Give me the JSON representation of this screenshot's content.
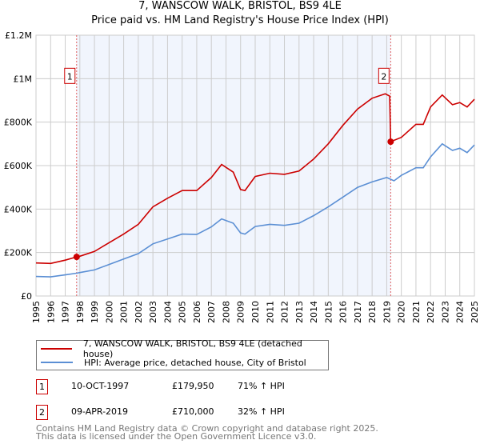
{
  "chart_data": {
    "type": "line",
    "title": "7, WANSCOW WALK, BRISTOL, BS9 4LE",
    "subtitle": "Price paid vs. HM Land Registry's House Price Index (HPI)",
    "xlim": [
      1995,
      2025
    ],
    "ylim": [
      0,
      1200000
    ],
    "yticks": [
      0,
      200000,
      400000,
      600000,
      800000,
      1000000,
      1200000
    ],
    "ytick_labels": [
      "£0",
      "£200K",
      "£400K",
      "£600K",
      "£800K",
      "£1M",
      "£1.2M"
    ],
    "xticks": [
      "1995",
      "1996",
      "1997",
      "1998",
      "1999",
      "2000",
      "2001",
      "2002",
      "2003",
      "2004",
      "2005",
      "2006",
      "2007",
      "2008",
      "2009",
      "2010",
      "2011",
      "2012",
      "2013",
      "2014",
      "2015",
      "2016",
      "2017",
      "2018",
      "2019",
      "2020",
      "2021",
      "2022",
      "2023",
      "2024",
      "2025"
    ],
    "grid": true,
    "shaded_range": [
      1997.78,
      2019.27
    ],
    "series": [
      {
        "name": "7, WANSCOW WALK, BRISTOL, BS9 4LE (detached house)",
        "color": "#cc0000",
        "x": [
          1995,
          1996,
          1997,
          1997.78,
          1998,
          1999,
          2000,
          2001,
          2002,
          2003,
          2004,
          2005,
          2006,
          2007,
          2007.7,
          2008.5,
          2009.0,
          2009.3,
          2010,
          2011,
          2012,
          2013,
          2014,
          2015,
          2016,
          2017,
          2018,
          2018.9,
          2019.2,
          2019.27,
          2020,
          2021,
          2021.5,
          2022,
          2022.8,
          2023.5,
          2024,
          2024.5,
          2025
        ],
        "y": [
          152000,
          150000,
          165000,
          179950,
          183000,
          205000,
          245000,
          285000,
          330000,
          410000,
          450000,
          485000,
          485000,
          545000,
          605000,
          570000,
          490000,
          485000,
          550000,
          565000,
          560000,
          575000,
          630000,
          700000,
          785000,
          860000,
          910000,
          930000,
          920000,
          710000,
          730000,
          790000,
          790000,
          870000,
          925000,
          880000,
          890000,
          870000,
          905000
        ]
      },
      {
        "name": "HPI: Average price, detached house, City of Bristol",
        "color": "#5b8fd4",
        "x": [
          1995,
          1996,
          1997,
          1997.78,
          1998,
          1999,
          2000,
          2001,
          2002,
          2003,
          2004,
          2005,
          2006,
          2007,
          2007.7,
          2008.5,
          2009.0,
          2009.3,
          2010,
          2011,
          2012,
          2013,
          2014,
          2015,
          2016,
          2017,
          2018,
          2019,
          2019.5,
          2020,
          2021,
          2021.5,
          2022,
          2022.8,
          2023.5,
          2024,
          2024.5,
          2025
        ],
        "y": [
          90000,
          88000,
          97000,
          105000,
          108000,
          120000,
          145000,
          170000,
          195000,
          240000,
          262000,
          285000,
          283000,
          318000,
          355000,
          335000,
          290000,
          285000,
          320000,
          330000,
          325000,
          335000,
          370000,
          410000,
          455000,
          500000,
          525000,
          545000,
          530000,
          555000,
          590000,
          590000,
          640000,
          700000,
          670000,
          680000,
          660000,
          695000
        ]
      }
    ],
    "annotations": [
      {
        "label": "1",
        "x": 1997.78,
        "y": 179950
      },
      {
        "label": "2",
        "x": 2019.27,
        "y": 710000
      }
    ]
  },
  "legend": [
    {
      "label": "7, WANSCOW WALK, BRISTOL, BS9 4LE (detached house)",
      "color": "#cc0000"
    },
    {
      "label": "HPI: Average price, detached house, City of Bristol",
      "color": "#5b8fd4"
    }
  ],
  "sales": [
    {
      "num": "1",
      "date": "10-OCT-1997",
      "price": "£179,950",
      "hpi": "71% ↑ HPI"
    },
    {
      "num": "2",
      "date": "09-APR-2019",
      "price": "£710,000",
      "hpi": "32% ↑ HPI"
    }
  ],
  "footer": {
    "line1": "Contains HM Land Registry data © Crown copyright and database right 2025.",
    "line2": "This data is licensed under the Open Government Licence v3.0."
  }
}
